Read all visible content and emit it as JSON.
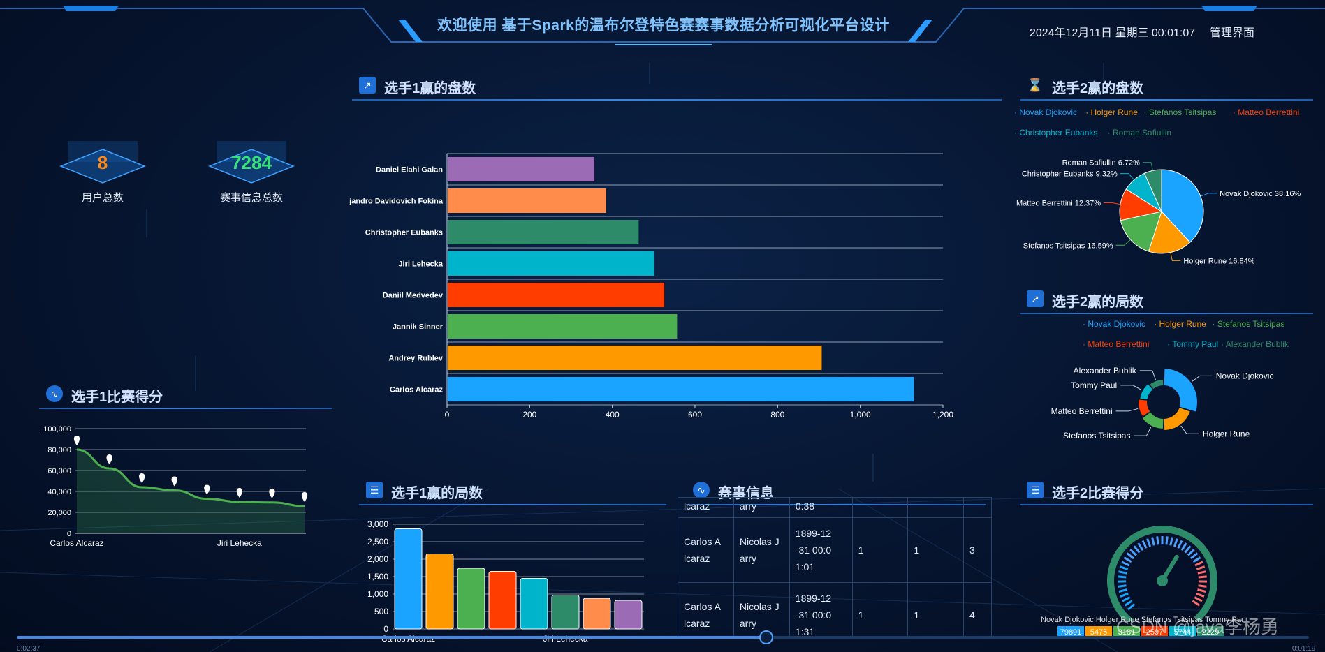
{
  "header": {
    "title": "欢迎使用 基于Spark的温布尔登特色赛赛事数据分析可视化平台设计",
    "datetime": "2024年12月11日 星期三 00:01:07",
    "admin_link": "管理界面"
  },
  "colors": {
    "palette": [
      "#1aa3ff",
      "#ff9900",
      "#4caf50",
      "#ff3d00",
      "#00b4cc",
      "#2e8b6a",
      "#ff8c4a",
      "#9b6bb5"
    ]
  },
  "stats": [
    {
      "value": "8",
      "label": "用户总数",
      "color": "#ff8a1a"
    },
    {
      "value": "7284",
      "label": "赛事信息总数",
      "color": "#38e07a"
    }
  ],
  "panels": {
    "p1_wins_sets": {
      "title": "选手1赢的盘数",
      "icon": "trend-up-icon"
    },
    "p2_wins_sets": {
      "title": "选手2赢的盘数",
      "icon": "hourglass-icon"
    },
    "p2_wins_games": {
      "title": "选手2赢的局数",
      "icon": "trend-up-icon"
    },
    "p1_score": {
      "title": "选手1比赛得分",
      "icon": "line-chart-icon"
    },
    "p1_wins_games": {
      "title": "选手1赢的局数",
      "icon": "server-icon"
    },
    "match_info": {
      "title": "赛事信息",
      "icon": "line-chart-icon"
    },
    "p2_score": {
      "title": "选手2比赛得分",
      "icon": "server-icon"
    }
  },
  "chart_data": [
    {
      "id": "p1_sets",
      "type": "bar",
      "orientation": "horizontal",
      "categories": [
        "Daniel Elahi Galan",
        "jandro Davidovich Fokina",
        "Christopher Eubanks",
        "Jiri Lehecka",
        "Daniil Medvedev",
        "Jannik Sinner",
        "Andrey Rublev",
        "Carlos Alcaraz"
      ],
      "values": [
        355,
        383,
        462,
        500,
        524,
        555,
        905,
        1128
      ],
      "xlim": [
        0,
        1200
      ],
      "xticks": [
        "0",
        "200",
        "400",
        "600",
        "800",
        "1,000",
        "1,200"
      ],
      "grid": true
    },
    {
      "id": "p2_sets_pie",
      "type": "pie",
      "legend": [
        "Novak Djokovic",
        "Holger Rune",
        "Stefanos Tsitsipas",
        "Matteo Berrettini",
        "Christopher Eubanks",
        "Roman Safiullin"
      ],
      "labels": [
        "Novak Djokovic 38.16%",
        "Holger Rune 16.84%",
        "Stefanos Tsitsipas 16.59%",
        "Matteo Berrettini 12.37%",
        "Christopher Eubanks 9.32%",
        "Roman Safiullin 6.72%"
      ],
      "values": [
        38.16,
        16.84,
        16.59,
        12.37,
        9.32,
        6.72
      ]
    },
    {
      "id": "p2_games_donut",
      "type": "pie",
      "legend": [
        "Novak Djokovic",
        "Holger Rune",
        "Stefanos Tsitsipas",
        "Matteo Berrettini",
        "Tommy Paul",
        "Alexander Bublik"
      ],
      "labels": [
        "Novak Djokovic",
        "Holger Rune",
        "Stefanos Tsitsipas",
        "Matteo Berrettini",
        "Tommy Paul",
        "Alexander Bublik"
      ],
      "values": [
        30,
        20,
        15,
        12,
        12,
        11
      ]
    },
    {
      "id": "p1_score_line",
      "type": "area",
      "x_labels": [
        "Carlos Alcaraz",
        "Jiri Lehecka"
      ],
      "values": [
        80000,
        62000,
        44000,
        41000,
        33000,
        30000,
        29500,
        26000
      ],
      "ylim": [
        0,
        100000
      ],
      "yticks": [
        "0",
        "20,000",
        "40,000",
        "60,000",
        "80,000",
        "100,000"
      ],
      "grid": true
    },
    {
      "id": "p1_games",
      "type": "bar",
      "categories": [
        "Carlos Alcaraz",
        "",
        "",
        "",
        "",
        "Jiri Lehecka",
        "",
        ""
      ],
      "values": [
        2870,
        2150,
        1740,
        1650,
        1450,
        970,
        880,
        820
      ],
      "ylim": [
        0,
        3000
      ],
      "yticks": [
        "0",
        "500",
        "1,000",
        "1,500",
        "2,000",
        "2,500",
        "3,000"
      ],
      "grid": true
    }
  ],
  "match_table": {
    "rows": [
      [
        "lcaraz",
        "arry",
        "0:38",
        "",
        "",
        ""
      ],
      [
        "Carlos A lcaraz",
        "Nicolas J arry",
        "1899-12 -31 00:0 1:01",
        "1",
        "1",
        "3"
      ],
      [
        "Carlos A lcaraz",
        "Nicolas J arry",
        "1899-12 -31 00:0 1:31",
        "1",
        "1",
        "4"
      ]
    ]
  },
  "gauge": {
    "names": "Novak Djokovic Holger Rune Stefanos Tsitsipas Tommy Paul Mikhail Y",
    "badges": [
      "79891",
      "5475",
      "3181",
      "2597",
      "5744",
      "2229"
    ],
    "fraction": 0.62
  },
  "video": {
    "time_left": "0:02:37",
    "time_right": "0:01:19",
    "progress": 0.58
  },
  "watermark": "CSDN @java李杨勇"
}
